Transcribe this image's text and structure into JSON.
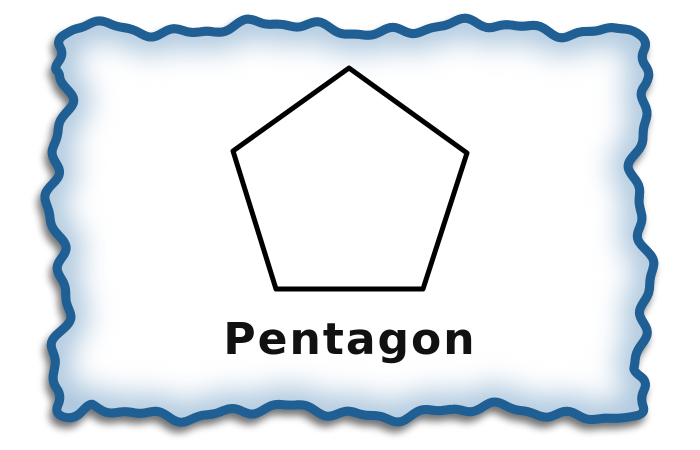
{
  "card": {
    "shape_name": "Pentagon",
    "shape_icon": "pentagon-icon",
    "label_color": "#111111",
    "frame_color": "#1f5f93",
    "glow_color": "#a9c4dc",
    "shape_stroke_color": "#000000",
    "background_color": "#ffffff"
  }
}
